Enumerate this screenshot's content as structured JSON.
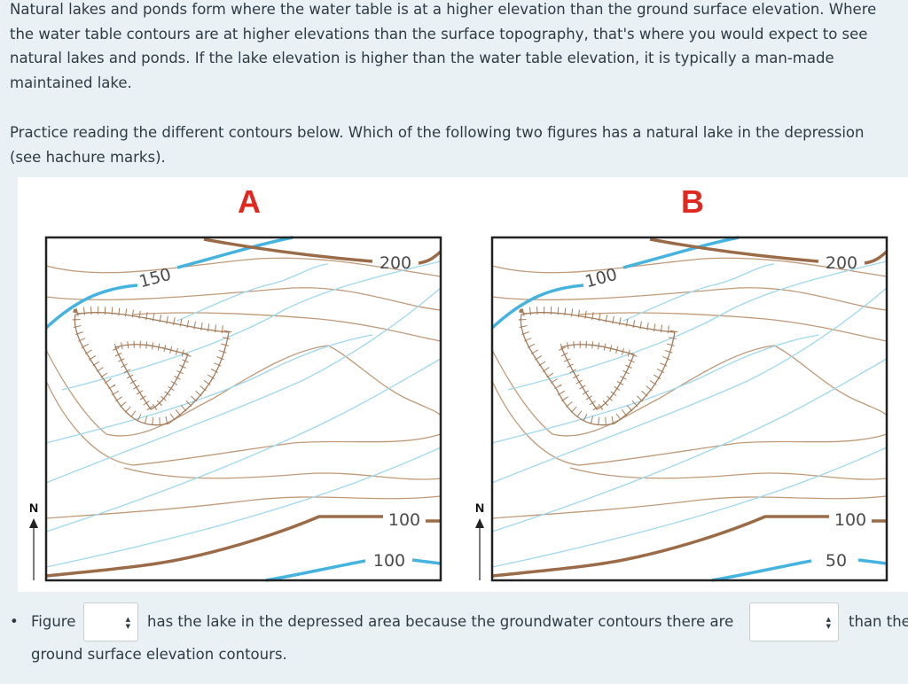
{
  "paragraphs": [
    "Natural lakes and ponds form where the water table is at a higher elevation than the ground surface elevation. Where the water table contours are at higher elevations than the surface topography, that's where you would expect to see natural lakes and ponds. If the lake elevation is higher than the water table elevation, it is typically a man-made maintained lake.",
    "Practice reading the different contours below. Which of the following two figures has a natural lake in the depression (see hachure marks)."
  ],
  "figures": [
    {
      "label": "A",
      "north_label": "N",
      "contour_labels": [
        "150",
        "200",
        "100",
        "100"
      ]
    },
    {
      "label": "B",
      "north_label": "N",
      "contour_labels": [
        "100",
        "200",
        "100",
        "50"
      ]
    }
  ],
  "question": {
    "parts": [
      "Figure",
      "has the lake in the depressed area because the groundwater contours there are",
      "than the",
      "ground surface elevation contours."
    ]
  }
}
